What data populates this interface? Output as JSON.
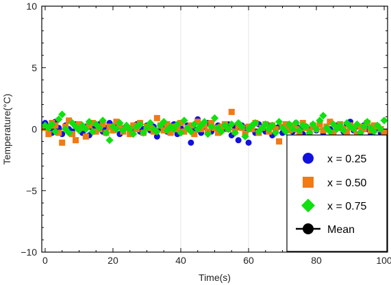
{
  "chart_data": {
    "type": "scatter",
    "title": "",
    "xlabel": "Time(s)",
    "ylabel": "Temperature(°C)",
    "xlim": [
      -1,
      101
    ],
    "ylim": [
      -10,
      10
    ],
    "xticks": [
      0,
      20,
      40,
      60,
      80,
      100
    ],
    "yticks": [
      -10,
      -5,
      0,
      5,
      10
    ],
    "xtick_labels": [
      "0",
      "20",
      "40",
      "60",
      "80",
      "100"
    ],
    "ytick_labels": [
      "−10",
      "−5",
      "0",
      "5",
      "10"
    ],
    "grid": "faint vertical lines at x=40 and x=60",
    "legend_position": "bottom-right",
    "series": [
      {
        "name": "x = 0.25",
        "marker": "circle",
        "color": "#1010e0",
        "x": [
          0,
          1,
          2,
          3,
          4,
          5,
          6,
          7,
          8,
          9,
          10,
          11,
          12,
          13,
          14,
          15,
          16,
          17,
          18,
          19,
          20,
          21,
          22,
          23,
          24,
          25,
          26,
          27,
          28,
          29,
          30,
          31,
          32,
          33,
          34,
          35,
          36,
          37,
          38,
          39,
          40,
          41,
          42,
          43,
          44,
          45,
          46,
          47,
          48,
          49,
          50,
          51,
          52,
          53,
          54,
          55,
          56,
          57,
          58,
          59,
          60,
          61,
          62,
          63,
          64,
          65,
          66,
          67,
          68,
          69,
          70,
          71,
          72,
          73,
          74,
          75,
          76,
          77,
          78,
          79,
          80,
          81,
          82,
          83,
          84,
          85,
          86,
          87,
          88,
          89,
          90,
          91,
          92,
          93,
          94,
          95,
          96,
          97,
          98,
          99,
          100
        ],
        "y": [
          0.5,
          0.2,
          -0.3,
          0.6,
          0.1,
          -0.4,
          0.3,
          0.0,
          -0.2,
          0.4,
          0.1,
          -0.3,
          0.2,
          -0.5,
          0.3,
          0.0,
          0.4,
          -0.2,
          0.1,
          0.5,
          -0.1,
          0.3,
          -0.4,
          0.0,
          0.2,
          -0.3,
          0.1,
          0.4,
          -0.2,
          0.0,
          0.3,
          -0.1,
          0.2,
          -0.6,
          0.1,
          0.3,
          -0.2,
          0.0,
          0.4,
          -0.4,
          0.1,
          -0.2,
          0.3,
          -1.1,
          0.0,
          0.8,
          -0.3,
          0.2,
          0.5,
          -0.2,
          0.1,
          0.3,
          -0.1,
          0.0,
          0.4,
          -0.5,
          0.2,
          -0.9,
          0.3,
          0.1,
          -1.1,
          0.2,
          -0.3,
          0.4,
          0.0,
          -0.2,
          0.3,
          -0.5,
          0.1,
          0.2,
          -0.3,
          0.4,
          0.0,
          -0.2,
          0.5,
          0.1,
          -0.4,
          0.2,
          0.0,
          0.3,
          -0.1,
          0.4,
          -0.3,
          0.2,
          0.0,
          -0.4,
          0.3,
          0.1,
          -0.2,
          0.4,
          0.6,
          -0.1,
          0.2,
          -0.3,
          0.3,
          0.0,
          -0.5,
          0.2,
          0.1,
          -0.3,
          -0.5
        ]
      },
      {
        "name": "x = 0.50",
        "marker": "square",
        "color": "#f07a14",
        "x": [
          0,
          1,
          2,
          3,
          4,
          5,
          6,
          7,
          8,
          9,
          10,
          11,
          12,
          13,
          14,
          15,
          16,
          17,
          18,
          19,
          20,
          21,
          22,
          23,
          24,
          25,
          26,
          27,
          28,
          29,
          30,
          31,
          32,
          33,
          34,
          35,
          36,
          37,
          38,
          39,
          40,
          41,
          42,
          43,
          44,
          45,
          46,
          47,
          48,
          49,
          50,
          51,
          52,
          53,
          54,
          55,
          56,
          57,
          58,
          59,
          60,
          61,
          62,
          63,
          64,
          65,
          66,
          67,
          68,
          69,
          70,
          71,
          72,
          73,
          74,
          75,
          76,
          77,
          78,
          79,
          80,
          81,
          82,
          83,
          84,
          85,
          86,
          87,
          88,
          89,
          90,
          91,
          92,
          93,
          94,
          95,
          96,
          97,
          98,
          99,
          100
        ],
        "y": [
          0.1,
          -0.4,
          0.5,
          0.3,
          -0.3,
          -1.1,
          0.2,
          0.7,
          -0.4,
          -0.9,
          0.4,
          0.1,
          -0.6,
          0.3,
          0.5,
          -0.2,
          0.0,
          0.4,
          -0.3,
          0.2,
          -0.1,
          0.6,
          0.3,
          -0.2,
          0.1,
          -0.4,
          0.3,
          0.0,
          0.5,
          -0.3,
          0.2,
          0.1,
          -0.2,
          0.9,
          0.3,
          -0.1,
          0.4,
          -0.3,
          0.2,
          0.0,
          0.5,
          -0.2,
          0.1,
          0.3,
          -0.4,
          0.6,
          0.0,
          0.3,
          -0.2,
          0.5,
          0.1,
          -0.3,
          0.2,
          0.4,
          0.0,
          1.4,
          -0.2,
          0.3,
          0.1,
          -0.4,
          0.2,
          0.0,
          0.5,
          -0.3,
          0.1,
          0.4,
          -0.2,
          0.3,
          0.0,
          -1.0,
          0.2,
          0.4,
          -0.1,
          0.3,
          0.0,
          -0.3,
          0.5,
          0.1,
          -0.2,
          0.3,
          0.0,
          0.4,
          -0.1,
          0.2,
          0.6,
          -0.3,
          0.1,
          0.4,
          0.0,
          -0.2,
          0.3,
          0.1,
          -0.4,
          0.2,
          0.0,
          0.5,
          -0.1,
          0.3,
          0.2,
          0.0,
          -0.2
        ]
      },
      {
        "name": "x = 0.75",
        "marker": "diamond",
        "color": "#10e010",
        "x": [
          0,
          1,
          2,
          3,
          4,
          5,
          6,
          7,
          8,
          9,
          10,
          11,
          12,
          13,
          14,
          15,
          16,
          17,
          18,
          19,
          20,
          21,
          22,
          23,
          24,
          25,
          26,
          27,
          28,
          29,
          30,
          31,
          32,
          33,
          34,
          35,
          36,
          37,
          38,
          39,
          40,
          41,
          42,
          43,
          44,
          45,
          46,
          47,
          48,
          49,
          50,
          51,
          52,
          53,
          54,
          55,
          56,
          57,
          58,
          59,
          60,
          61,
          62,
          63,
          64,
          65,
          66,
          67,
          68,
          69,
          70,
          71,
          72,
          73,
          74,
          75,
          76,
          77,
          78,
          79,
          80,
          81,
          82,
          83,
          84,
          85,
          86,
          87,
          88,
          89,
          90,
          91,
          92,
          93,
          94,
          95,
          96,
          97,
          98,
          99,
          100
        ],
        "y": [
          0.3,
          0.1,
          0.4,
          -0.2,
          0.8,
          1.2,
          0.0,
          -0.3,
          0.5,
          0.2,
          -0.1,
          0.3,
          0.0,
          0.6,
          -0.2,
          0.4,
          0.1,
          0.7,
          -0.3,
          -0.9,
          0.2,
          0.0,
          0.5,
          -0.1,
          0.3,
          0.0,
          -0.4,
          0.2,
          0.4,
          -0.3,
          0.1,
          0.5,
          0.0,
          -0.2,
          0.3,
          0.6,
          -0.1,
          0.2,
          0.0,
          0.4,
          -0.3,
          0.7,
          0.1,
          -0.2,
          0.4,
          0.0,
          0.3,
          0.6,
          -0.4,
          0.2,
          0.9,
          0.1,
          -0.2,
          0.3,
          0.0,
          0.4,
          -0.3,
          0.5,
          0.2,
          -0.6,
          0.0,
          0.3,
          0.5,
          -0.2,
          0.1,
          0.4,
          0.0,
          0.3,
          -0.3,
          0.6,
          0.1,
          -0.2,
          0.4,
          0.0,
          0.5,
          -0.1,
          0.3,
          0.2,
          -0.3,
          0.4,
          0.0,
          0.7,
          1.1,
          0.1,
          -0.2,
          0.4,
          0.0,
          0.3,
          -0.1,
          0.5,
          0.2,
          0.0,
          0.4,
          -0.3,
          0.2,
          0.6,
          0.1,
          -0.2,
          0.3,
          0.0,
          0.7
        ]
      }
    ],
    "mean_legend_label": "Mean",
    "mean_value": 0
  }
}
